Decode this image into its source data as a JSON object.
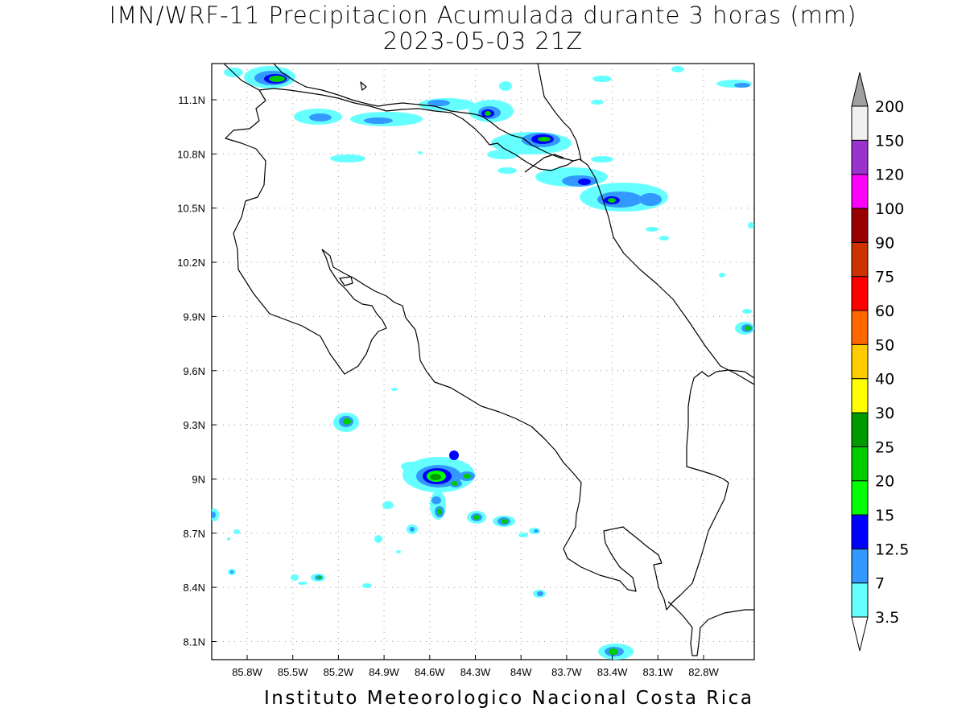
{
  "header": {
    "title": "IMN/WRF-11 Precipitacion Acumulada durante 3 horas (mm)",
    "subtitle": "2023-05-03 21Z"
  },
  "footer": {
    "credit": "Instituto Meteorologico Nacional Costa Rica"
  },
  "map": {
    "lon_ticks": [
      "85.8W",
      "85.5W",
      "85.2W",
      "84.9W",
      "84.6W",
      "84.3W",
      "84W",
      "83.7W",
      "83.4W",
      "83.1W",
      "82.8W"
    ],
    "lat_ticks": [
      "11.1N",
      "10.8N",
      "10.5N",
      "10.2N",
      "9.9N",
      "9.6N",
      "9.3N",
      "9N",
      "8.7N",
      "8.4N",
      "8.1N"
    ]
  },
  "colorbar": {
    "levels": [
      "3.5",
      "7",
      "12.5",
      "15",
      "20",
      "25",
      "30",
      "40",
      "50",
      "60",
      "75",
      "90",
      "100",
      "120",
      "150",
      "200"
    ],
    "colors": [
      "#66ffff",
      "#3399ff",
      "#0000ff",
      "#00ff00",
      "#00cc00",
      "#009900",
      "#ffff00",
      "#ffcc00",
      "#ff6600",
      "#ff0000",
      "#cc3300",
      "#990000",
      "#ff00ff",
      "#9933cc",
      "#f0f0f0",
      "#a0a0a0"
    ]
  }
}
